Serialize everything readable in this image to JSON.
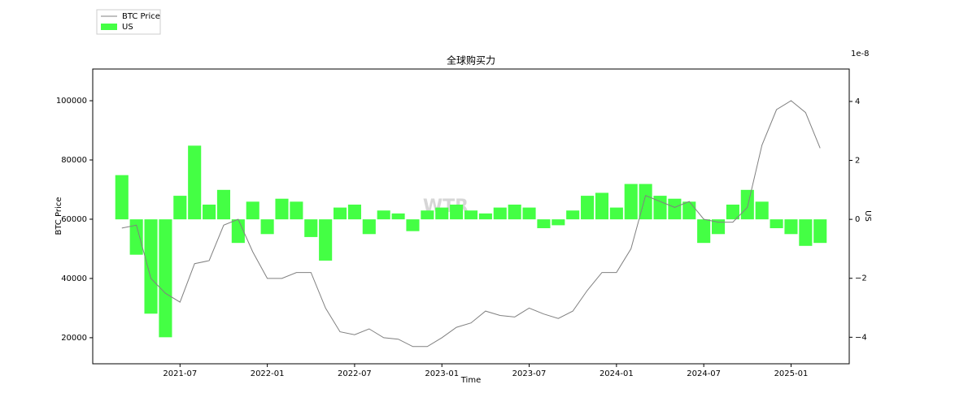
{
  "chart_data": {
    "type": "line-bar",
    "title": "全球购买力",
    "xlabel": "Time",
    "ylabel": "BTC Price",
    "y2label": "US",
    "y2_offset_text": "1e-8",
    "annotation": "WTR",
    "x": [
      "2021-03",
      "2021-04",
      "2021-05",
      "2021-06",
      "2021-07",
      "2021-08",
      "2021-09",
      "2021-10",
      "2021-11",
      "2021-12",
      "2022-01",
      "2022-02",
      "2022-03",
      "2022-04",
      "2022-05",
      "2022-06",
      "2022-07",
      "2022-08",
      "2022-09",
      "2022-10",
      "2022-11",
      "2022-12",
      "2023-01",
      "2023-02",
      "2023-03",
      "2023-04",
      "2023-05",
      "2023-06",
      "2023-07",
      "2023-08",
      "2023-09",
      "2023-10",
      "2023-11",
      "2023-12",
      "2024-01",
      "2024-02",
      "2024-03",
      "2024-04",
      "2024-05",
      "2024-06",
      "2024-07",
      "2024-08",
      "2024-09",
      "2024-10",
      "2024-11",
      "2024-12",
      "2025-01",
      "2025-02",
      "2025-03"
    ],
    "series": [
      {
        "name": "BTC Price",
        "color": "#808080",
        "axis": "y",
        "values": [
          57000,
          58000,
          40000,
          35000,
          32000,
          45000,
          46000,
          58000,
          60000,
          49000,
          40000,
          40000,
          42000,
          42000,
          30000,
          22000,
          21000,
          23000,
          20000,
          19500,
          17000,
          17000,
          20000,
          23500,
          25000,
          29000,
          27500,
          27000,
          30000,
          28000,
          26500,
          29000,
          36000,
          42000,
          42000,
          50000,
          68000,
          66000,
          64000,
          66000,
          60000,
          59000,
          59000,
          64000,
          85000,
          97000,
          100000,
          96000,
          84000
        ]
      },
      {
        "name": "US",
        "color": "#44ff44",
        "axis": "y2",
        "values": [
          1.5,
          -1.2,
          -3.2,
          -4.0,
          0.8,
          2.5,
          0.5,
          1.0,
          -0.8,
          0.6,
          -0.5,
          0.7,
          0.6,
          -0.6,
          -1.4,
          0.4,
          0.5,
          -0.5,
          0.3,
          0.2,
          -0.4,
          0.3,
          0.4,
          0.5,
          0.3,
          0.2,
          0.4,
          0.5,
          0.4,
          -0.3,
          -0.2,
          0.3,
          0.8,
          0.9,
          0.4,
          1.2,
          1.2,
          0.8,
          0.7,
          0.6,
          -0.8,
          -0.5,
          0.5,
          1.0,
          0.6,
          -0.3,
          -0.5,
          -0.9,
          -0.8
        ]
      }
    ],
    "xlim": [
      "2021-01",
      "2025-05"
    ],
    "xticks": [
      "2021-07",
      "2022-01",
      "2022-07",
      "2023-01",
      "2023-07",
      "2024-01",
      "2024-07",
      "2025-01"
    ],
    "ylim": [
      11200,
      110700
    ],
    "yticks": [
      20000,
      40000,
      60000,
      80000,
      100000
    ],
    "y2lim": [
      -4.9,
      5.1
    ],
    "y2ticks": [
      {
        "value": -4,
        "label": "−4"
      },
      {
        "value": -2,
        "label": "−2"
      },
      0,
      2,
      4
    ],
    "legend": "upper left"
  }
}
